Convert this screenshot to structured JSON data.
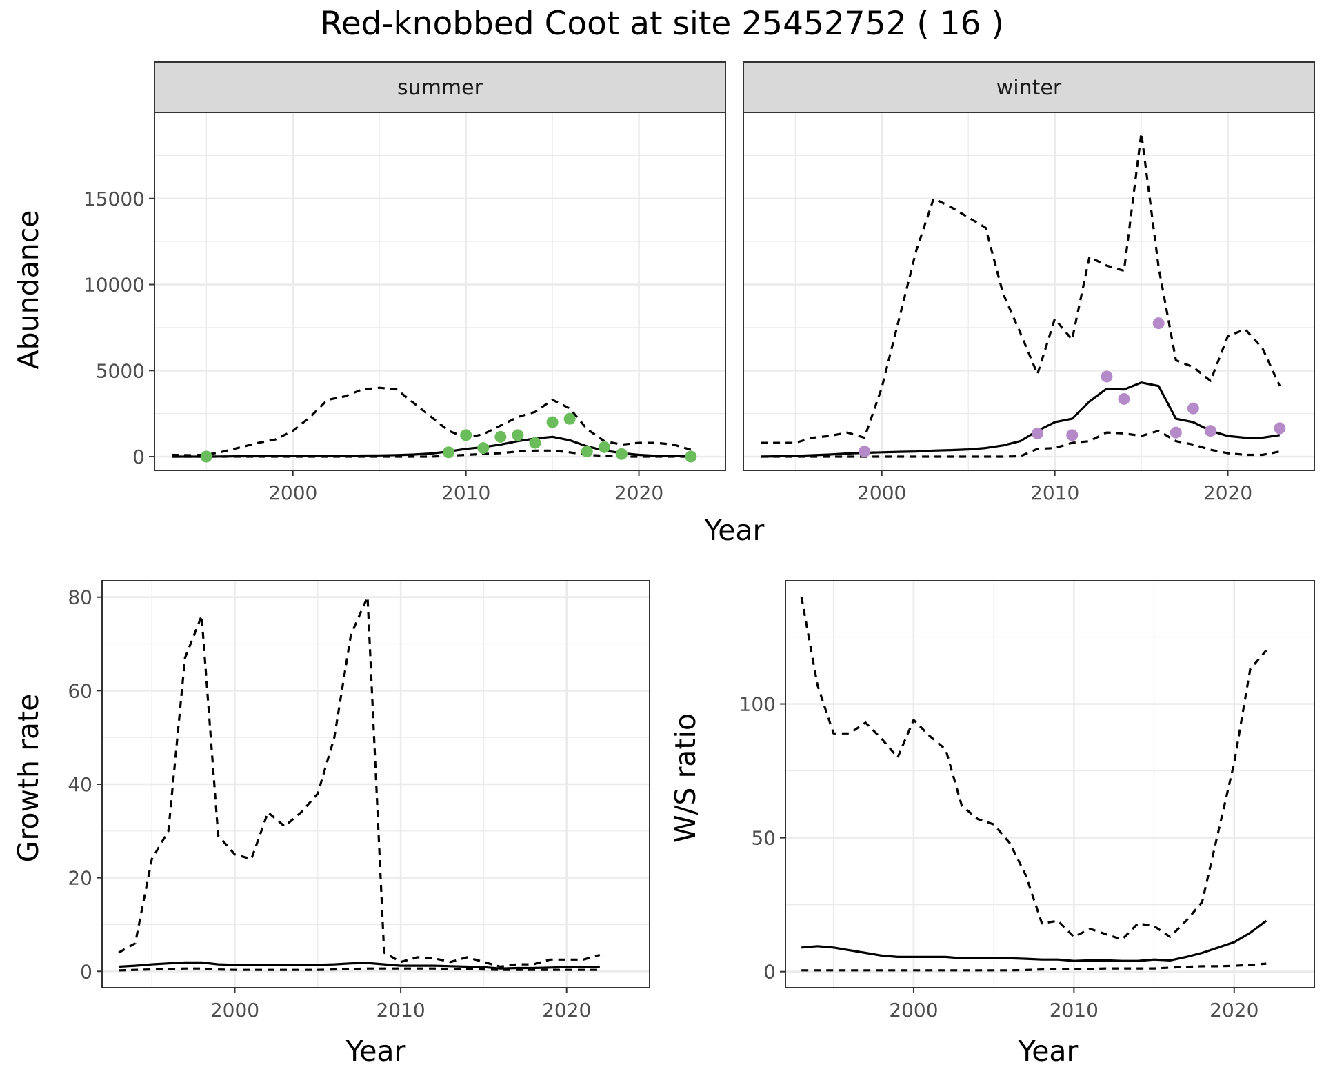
{
  "title": "Red-knobbed Coot at site 25452752 ( 16 )",
  "chart_data": [
    {
      "type": "line",
      "facet": "summer",
      "xlabel": "Year",
      "ylabel": "Abundance",
      "xlim": [
        1992,
        2025
      ],
      "ylim": [
        -800,
        20000
      ],
      "xticks": [
        2000,
        2010,
        2020
      ],
      "yticks": [
        0,
        5000,
        10000,
        15000
      ],
      "points_color": "#6abd5a",
      "fit": {
        "x": [
          1993,
          1994,
          1995,
          1996,
          1997,
          1998,
          1999,
          2000,
          2001,
          2002,
          2003,
          2004,
          2005,
          2006,
          2007,
          2008,
          2009,
          2010,
          2011,
          2012,
          2013,
          2014,
          2015,
          2016,
          2017,
          2018,
          2019,
          2020,
          2021,
          2022,
          2023
        ],
        "y": [
          0,
          0,
          0,
          10,
          20,
          20,
          30,
          30,
          40,
          40,
          50,
          60,
          70,
          90,
          120,
          180,
          300,
          450,
          550,
          700,
          900,
          1050,
          1150,
          950,
          600,
          350,
          200,
          100,
          50,
          30,
          20
        ]
      },
      "upper": {
        "x": [
          1993,
          1994,
          1995,
          1996,
          1997,
          1998,
          1999,
          2000,
          2001,
          2002,
          2003,
          2004,
          2005,
          2006,
          2007,
          2008,
          2009,
          2010,
          2011,
          2012,
          2013,
          2014,
          2015,
          2016,
          2017,
          2018,
          2019,
          2020,
          2021,
          2022,
          2023
        ],
        "y": [
          100,
          80,
          100,
          300,
          550,
          800,
          1000,
          1500,
          2300,
          3300,
          3500,
          3900,
          4000,
          3900,
          3100,
          2300,
          1500,
          1100,
          1300,
          1800,
          2300,
          2600,
          3300,
          2800,
          1600,
          900,
          700,
          800,
          800,
          700,
          400
        ]
      },
      "lower": {
        "x": [
          1993,
          1994,
          1995,
          1996,
          1997,
          1998,
          1999,
          2000,
          2001,
          2002,
          2003,
          2004,
          2005,
          2006,
          2007,
          2008,
          2009,
          2010,
          2011,
          2012,
          2013,
          2014,
          2015,
          2016,
          2017,
          2018,
          2019,
          2020,
          2021,
          2022,
          2023
        ],
        "y": [
          0,
          0,
          0,
          0,
          0,
          0,
          0,
          0,
          0,
          0,
          0,
          0,
          0,
          0,
          0,
          0,
          50,
          100,
          150,
          200,
          300,
          350,
          350,
          250,
          100,
          50,
          0,
          0,
          0,
          0,
          0
        ]
      },
      "points": {
        "x": [
          1995,
          2009,
          2010,
          2011,
          2012,
          2013,
          2014,
          2015,
          2016,
          2017,
          2018,
          2019,
          2023
        ],
        "y": [
          0,
          250,
          1250,
          500,
          1150,
          1250,
          800,
          2000,
          2200,
          300,
          550,
          150,
          0
        ]
      }
    },
    {
      "type": "line",
      "facet": "winter",
      "xlabel": "Year",
      "ylabel": "Abundance",
      "xlim": [
        1992,
        2025
      ],
      "ylim": [
        -800,
        20000
      ],
      "xticks": [
        2000,
        2010,
        2020
      ],
      "yticks": [
        0,
        5000,
        10000,
        15000
      ],
      "points_color": "#b48ac9",
      "fit": {
        "x": [
          1993,
          1994,
          1995,
          1996,
          1997,
          1998,
          1999,
          2000,
          2001,
          2002,
          2003,
          2004,
          2005,
          2006,
          2007,
          2008,
          2009,
          2010,
          2011,
          2012,
          2013,
          2014,
          2015,
          2016,
          2017,
          2018,
          2019,
          2020,
          2021,
          2022,
          2023
        ],
        "y": [
          0,
          20,
          40,
          80,
          120,
          180,
          220,
          250,
          280,
          300,
          350,
          380,
          420,
          500,
          650,
          900,
          1500,
          2000,
          2200,
          3200,
          3950,
          3900,
          4300,
          4100,
          2200,
          2000,
          1500,
          1200,
          1100,
          1100,
          1250
        ]
      },
      "upper": {
        "x": [
          1993,
          1994,
          1995,
          1996,
          1997,
          1998,
          1999,
          2000,
          2001,
          2002,
          2003,
          2004,
          2005,
          2006,
          2007,
          2008,
          2009,
          2010,
          2011,
          2012,
          2013,
          2014,
          2015,
          2016,
          2017,
          2018,
          2019,
          2020,
          2021,
          2022,
          2023
        ],
        "y": [
          800,
          800,
          800,
          1100,
          1200,
          1400,
          1100,
          4000,
          8000,
          12000,
          15000,
          14500,
          13900,
          13300,
          9500,
          7200,
          4800,
          8000,
          6800,
          11600,
          11100,
          10800,
          18800,
          11000,
          5600,
          5200,
          4400,
          7000,
          7400,
          6300,
          4100
        ]
      },
      "lower": {
        "x": [
          1993,
          1994,
          1995,
          1996,
          1997,
          1998,
          1999,
          2000,
          2001,
          2002,
          2003,
          2004,
          2005,
          2006,
          2007,
          2008,
          2009,
          2010,
          2011,
          2012,
          2013,
          2014,
          2015,
          2016,
          2017,
          2018,
          2019,
          2020,
          2021,
          2022,
          2023
        ],
        "y": [
          0,
          0,
          0,
          0,
          0,
          0,
          0,
          0,
          0,
          0,
          0,
          0,
          0,
          0,
          0,
          20,
          450,
          500,
          800,
          900,
          1400,
          1350,
          1200,
          1500,
          900,
          700,
          400,
          200,
          100,
          100,
          300
        ]
      },
      "points": {
        "x": [
          1999,
          2009,
          2011,
          2013,
          2014,
          2016,
          2017,
          2018,
          2019,
          2023
        ],
        "y": [
          300,
          1350,
          1250,
          4650,
          3350,
          7750,
          1400,
          2800,
          1500,
          1650
        ]
      }
    },
    {
      "type": "line",
      "xlabel": "Year",
      "ylabel": "Growth rate",
      "xlim": [
        1992,
        2025
      ],
      "ylim": [
        -3.5,
        83.5
      ],
      "xticks": [
        2000,
        2010,
        2020
      ],
      "yticks": [
        0,
        20,
        40,
        60,
        80
      ],
      "fit": {
        "x": [
          1993,
          1994,
          1995,
          1996,
          1997,
          1998,
          1999,
          2000,
          2001,
          2002,
          2003,
          2004,
          2005,
          2006,
          2007,
          2008,
          2009,
          2010,
          2011,
          2012,
          2013,
          2014,
          2015,
          2016,
          2017,
          2018,
          2019,
          2020,
          2021,
          2022
        ],
        "y": [
          1,
          1.2,
          1.5,
          1.7,
          1.9,
          1.9,
          1.5,
          1.4,
          1.4,
          1.4,
          1.4,
          1.4,
          1.4,
          1.5,
          1.7,
          1.8,
          1.5,
          1.2,
          1.2,
          1.2,
          1.1,
          1.0,
          0.9,
          0.6,
          0.7,
          0.7,
          0.8,
          0.9,
          0.9,
          1.0
        ]
      },
      "upper": {
        "x": [
          1993,
          1994,
          1995,
          1996,
          1997,
          1998,
          1999,
          2000,
          2001,
          2002,
          2003,
          2004,
          2005,
          2006,
          2007,
          2008,
          2009,
          2010,
          2011,
          2012,
          2013,
          2014,
          2015,
          2016,
          2017,
          2018,
          2019,
          2020,
          2021,
          2022
        ],
        "y": [
          4,
          6,
          24,
          30,
          67,
          76,
          29,
          25,
          24,
          34,
          31,
          34,
          38,
          50,
          72,
          80,
          4,
          2,
          3,
          2.8,
          2,
          3,
          2,
          1,
          1.5,
          1.5,
          2.5,
          2.5,
          2.5,
          3.5
        ]
      },
      "lower": {
        "x": [
          1993,
          1994,
          1995,
          1996,
          1997,
          1998,
          1999,
          2000,
          2001,
          2002,
          2003,
          2004,
          2005,
          2006,
          2007,
          2008,
          2009,
          2010,
          2011,
          2012,
          2013,
          2014,
          2015,
          2016,
          2017,
          2018,
          2019,
          2020,
          2021,
          2022
        ],
        "y": [
          0.2,
          0.3,
          0.4,
          0.5,
          0.6,
          0.6,
          0.4,
          0.3,
          0.3,
          0.3,
          0.3,
          0.3,
          0.3,
          0.4,
          0.5,
          0.6,
          0.6,
          0.6,
          0.6,
          0.6,
          0.5,
          0.5,
          0.4,
          0.3,
          0.3,
          0.3,
          0.3,
          0.3,
          0.3,
          0.3
        ]
      }
    },
    {
      "type": "line",
      "xlabel": "Year",
      "ylabel": "W/S ratio",
      "xlim": [
        1992,
        2025
      ],
      "ylim": [
        -6,
        146
      ],
      "xticks": [
        2000,
        2010,
        2020
      ],
      "yticks": [
        0,
        50,
        100
      ],
      "fit": {
        "x": [
          1993,
          1994,
          1995,
          1996,
          1997,
          1998,
          1999,
          2000,
          2001,
          2002,
          2003,
          2004,
          2005,
          2006,
          2007,
          2008,
          2009,
          2010,
          2011,
          2012,
          2013,
          2014,
          2015,
          2016,
          2017,
          2018,
          2019,
          2020,
          2021,
          2022
        ],
        "y": [
          9,
          9.5,
          9,
          8,
          7,
          6,
          5.5,
          5.5,
          5.5,
          5.5,
          5,
          5,
          5,
          5,
          4.8,
          4.5,
          4.5,
          4,
          4.2,
          4.2,
          4,
          4,
          4.5,
          4.2,
          5.5,
          7,
          9,
          11,
          14.5,
          19
        ]
      },
      "upper": {
        "x": [
          1993,
          1994,
          1995,
          1996,
          1997,
          1998,
          1999,
          2000,
          2001,
          2002,
          2003,
          2004,
          2005,
          2006,
          2007,
          2008,
          2009,
          2010,
          2011,
          2012,
          2013,
          2014,
          2015,
          2016,
          2017,
          2018,
          2019,
          2020,
          2021,
          2022
        ],
        "y": [
          140,
          107,
          89,
          89,
          93,
          87,
          80,
          94,
          88,
          83,
          62,
          57,
          55,
          48,
          36,
          18,
          19,
          13,
          16,
          14,
          12,
          18,
          17,
          13,
          19,
          26,
          52,
          78,
          113,
          120
        ]
      },
      "lower": {
        "x": [
          1993,
          1994,
          1995,
          1996,
          1997,
          1998,
          1999,
          2000,
          2001,
          2002,
          2003,
          2004,
          2005,
          2006,
          2007,
          2008,
          2009,
          2010,
          2011,
          2012,
          2013,
          2014,
          2015,
          2016,
          2017,
          2018,
          2019,
          2020,
          2021,
          2022
        ],
        "y": [
          0.5,
          0.5,
          0.5,
          0.5,
          0.5,
          0.5,
          0.5,
          0.5,
          0.5,
          0.5,
          0.5,
          0.5,
          0.5,
          0.5,
          0.6,
          0.8,
          1,
          1,
          1,
          1.2,
          1.2,
          1.2,
          1.2,
          1.5,
          1.8,
          2,
          2,
          2.2,
          2.5,
          3
        ]
      }
    }
  ]
}
